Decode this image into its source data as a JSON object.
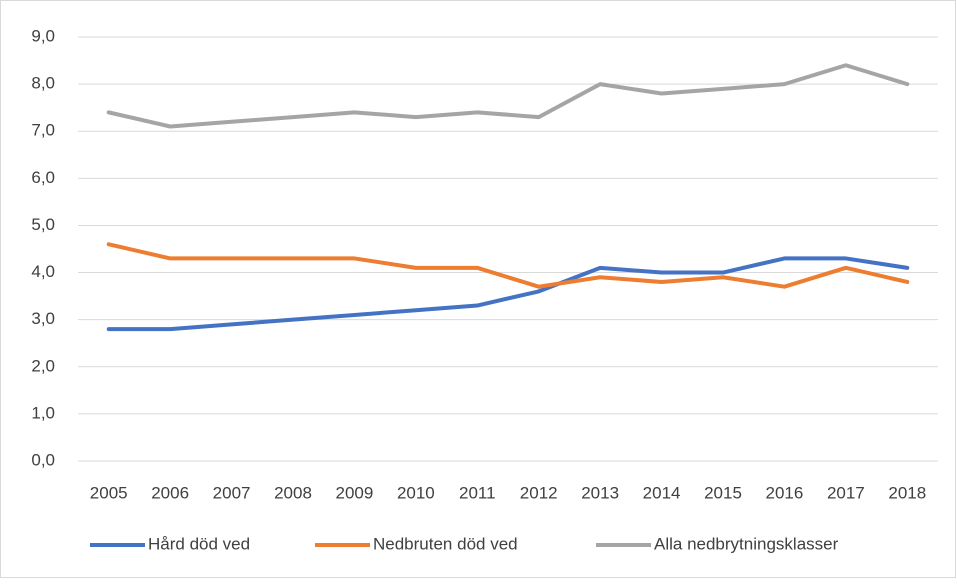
{
  "chart_data": {
    "type": "line",
    "categories": [
      "2005",
      "2006",
      "2007",
      "2008",
      "2009",
      "2010",
      "2011",
      "2012",
      "2013",
      "2014",
      "2015",
      "2016",
      "2017",
      "2018"
    ],
    "series": [
      {
        "name": "Hård död ved",
        "color": "#4472c4",
        "values": [
          2.8,
          2.8,
          2.9,
          3.0,
          3.1,
          3.2,
          3.3,
          3.6,
          4.1,
          4.0,
          4.0,
          4.3,
          4.3,
          4.1
        ]
      },
      {
        "name": "Nedbruten död ved",
        "color": "#ed7d31",
        "values": [
          4.6,
          4.3,
          4.3,
          4.3,
          4.3,
          4.1,
          4.1,
          3.7,
          3.9,
          3.8,
          3.9,
          3.7,
          4.1,
          3.8
        ]
      },
      {
        "name": "Alla nedbrytningsklasser",
        "color": "#a5a5a5",
        "values": [
          7.4,
          7.1,
          7.2,
          7.3,
          7.4,
          7.3,
          7.4,
          7.3,
          8.0,
          7.8,
          7.9,
          8.0,
          8.4,
          8.0
        ]
      }
    ],
    "ylim": [
      0,
      9
    ],
    "yticks": [
      {
        "value": 0,
        "label": "0,0"
      },
      {
        "value": 1,
        "label": "1,0"
      },
      {
        "value": 2,
        "label": "2,0"
      },
      {
        "value": 3,
        "label": "3,0"
      },
      {
        "value": 4,
        "label": "4,0"
      },
      {
        "value": 5,
        "label": "5,0"
      },
      {
        "value": 6,
        "label": "6,0"
      },
      {
        "value": 7,
        "label": "7,0"
      },
      {
        "value": 8,
        "label": "8,0"
      },
      {
        "value": 9,
        "label": "9,0"
      }
    ],
    "grid": true,
    "legend": "bottom"
  }
}
